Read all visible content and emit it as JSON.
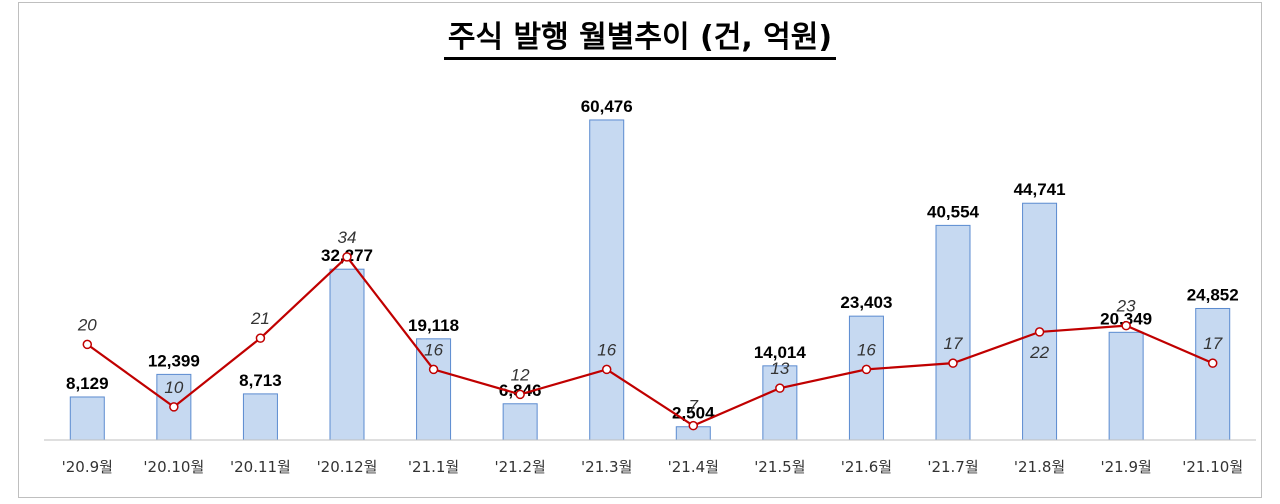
{
  "title": "주식 발행 월별추이 (건, 억원)",
  "colors": {
    "bar_fill": "#c6d9f1",
    "bar_stroke": "#5b8bd0",
    "line": "#c00000"
  },
  "chart_data": {
    "type": "bar",
    "title": "주식 발행 월별추이 (건, 억원)",
    "categories": [
      "'20.9월",
      "'20.10월",
      "'20.11월",
      "'20.12월",
      "'21.1월",
      "'21.2월",
      "'21.3월",
      "'21.4월",
      "'21.5월",
      "'21.6월",
      "'21.7월",
      "'21.8월",
      "'21.9월",
      "'21.10월"
    ],
    "series": [
      {
        "type": "bar",
        "values": [
          8129,
          12399,
          8713,
          32277,
          19118,
          6846,
          60476,
          2504,
          14014,
          23403,
          40554,
          44741,
          20349,
          24852
        ],
        "labels": [
          "8,129",
          "12,399",
          "8,713",
          "32,277",
          "19,118",
          "6,846",
          "60,476",
          "2,504",
          "14,014",
          "23,403",
          "40,554",
          "44,741",
          "20,349",
          "24,852"
        ]
      },
      {
        "type": "line",
        "values": [
          20,
          10,
          21,
          34,
          16,
          12,
          16,
          7,
          13,
          16,
          17,
          22,
          23,
          17
        ],
        "labels": [
          "20",
          "10",
          "21",
          "34",
          "16",
          "12",
          "16",
          "7",
          "13",
          "16",
          "17",
          "22",
          "23",
          "17"
        ]
      }
    ],
    "grid": false,
    "legend": "none"
  }
}
